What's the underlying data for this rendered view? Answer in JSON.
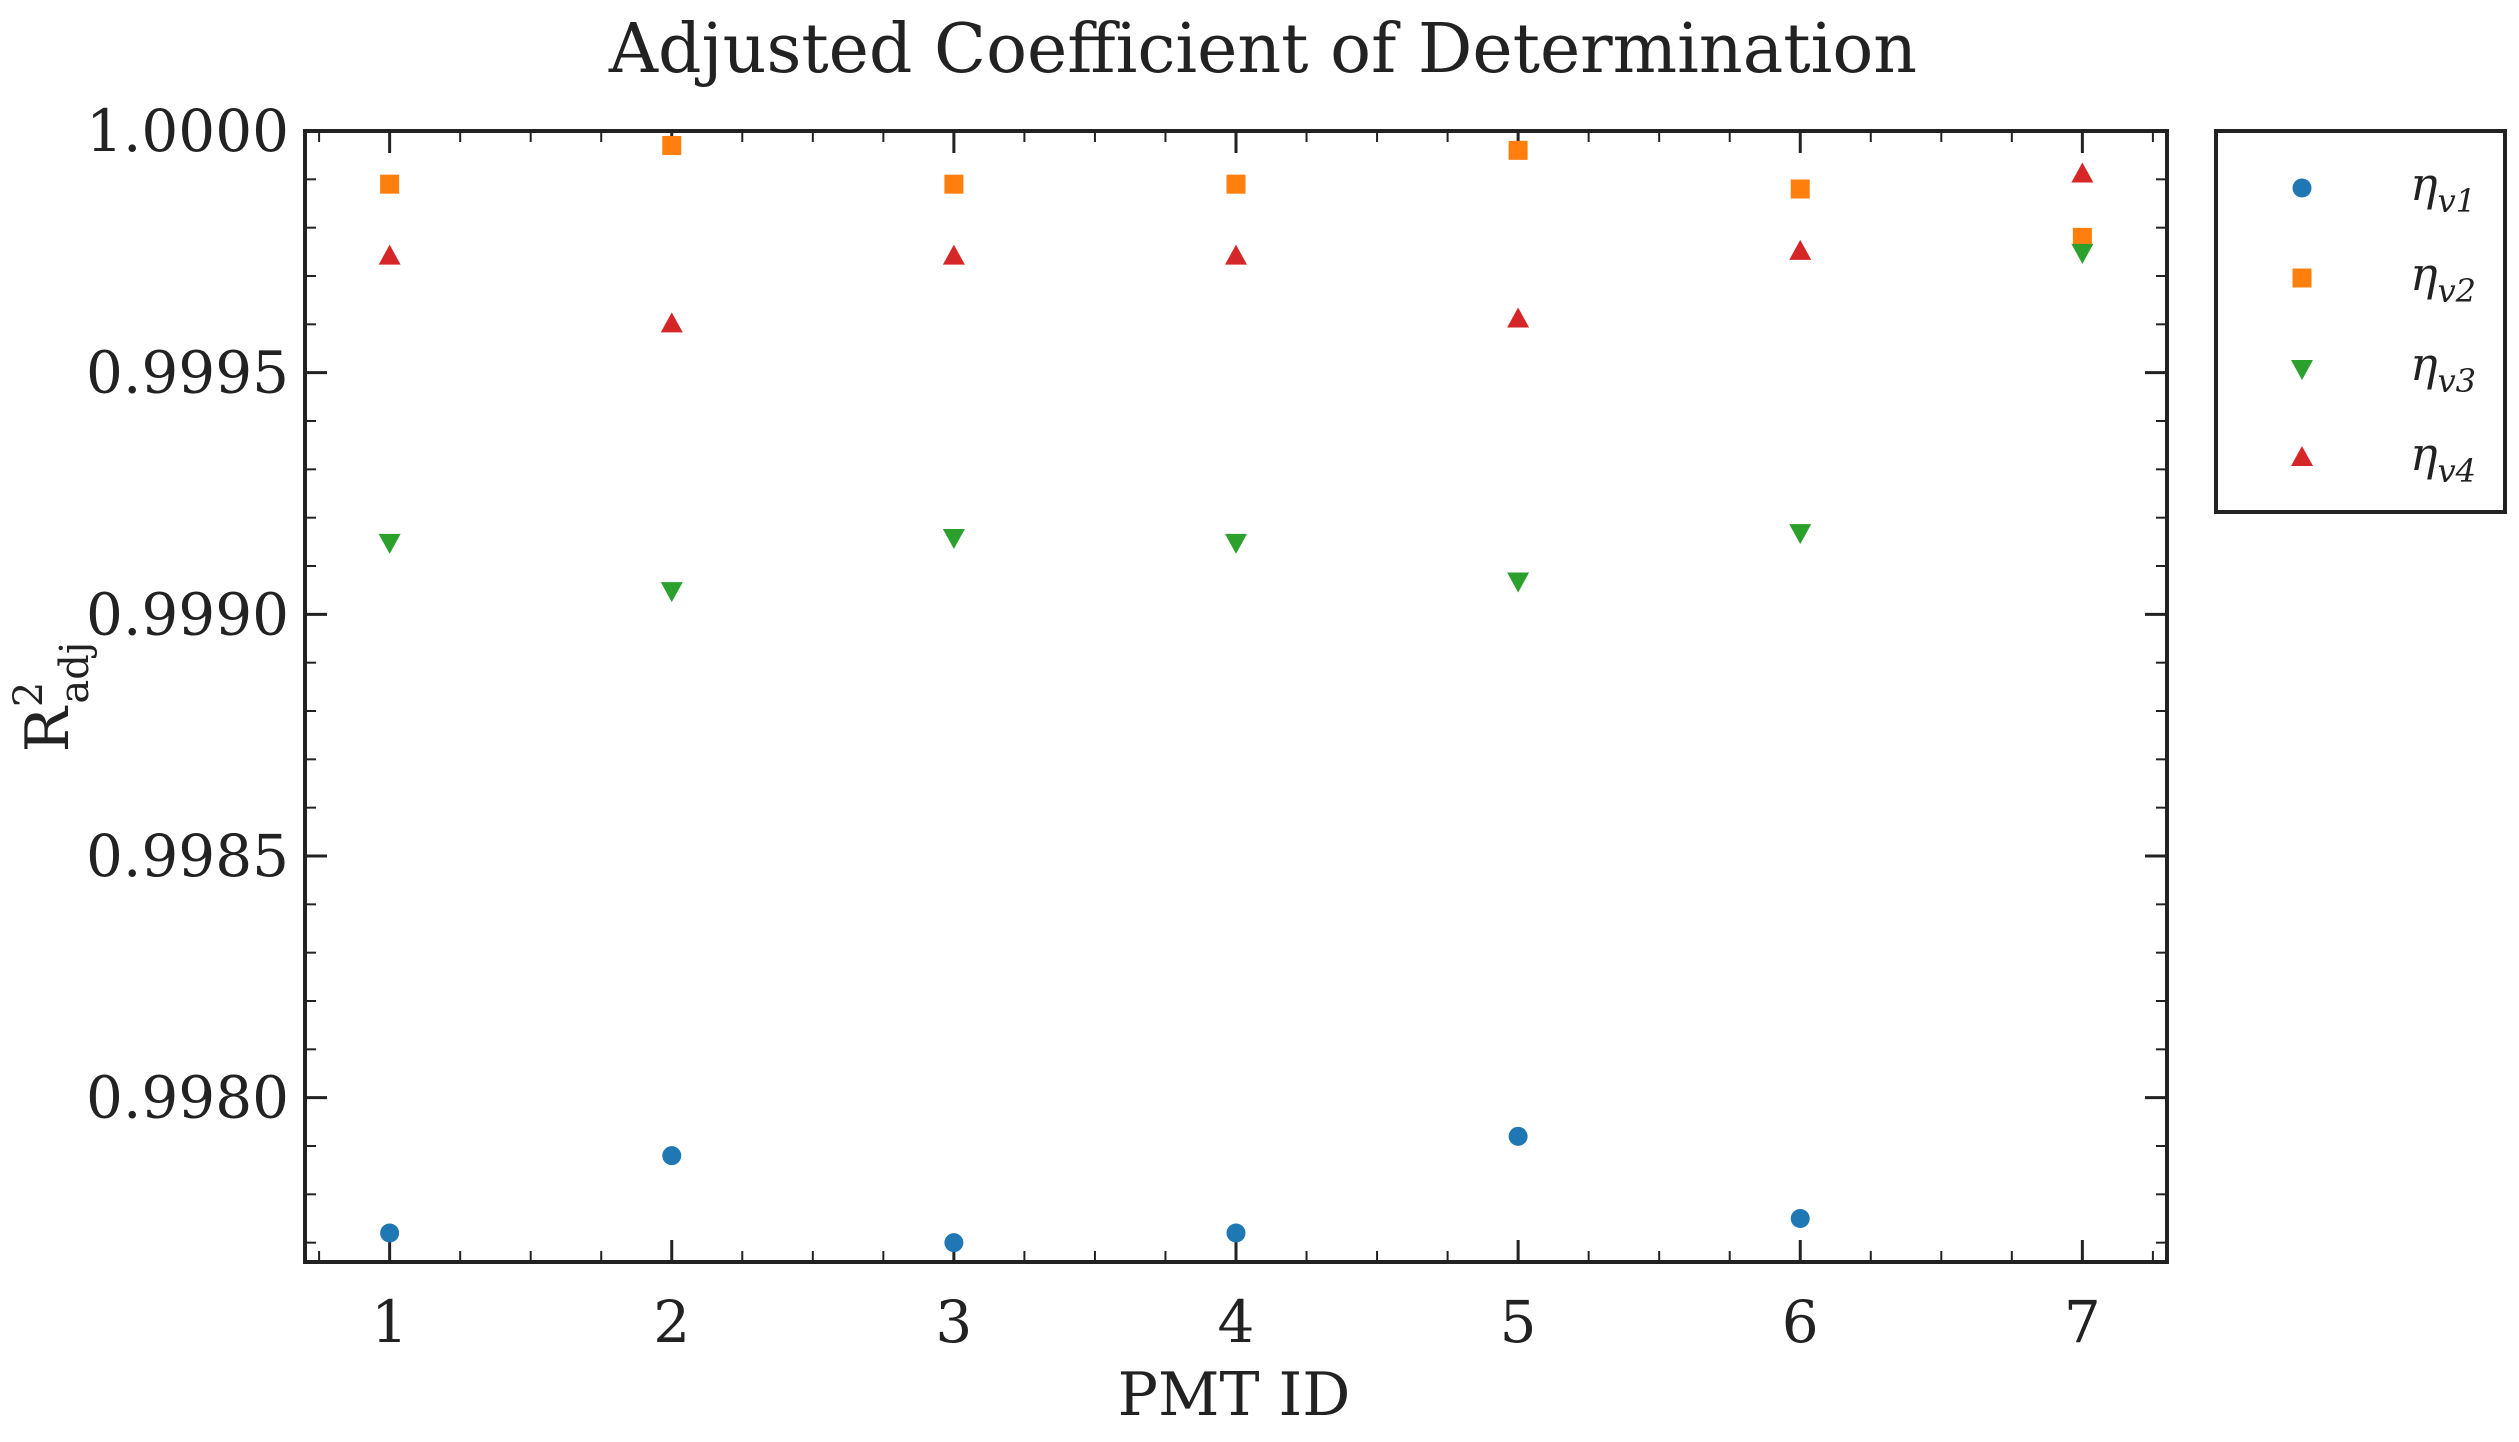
{
  "chart_data": {
    "type": "scatter",
    "title": "Adjusted Coefficient of Determination",
    "xlabel": "PMT ID",
    "ylabel": {
      "base": "R",
      "sup": "2",
      "sub": "adj"
    },
    "x": [
      1,
      2,
      3,
      4,
      5,
      6,
      7
    ],
    "xlim": [
      0.7,
      7.3
    ],
    "ylim": [
      0.99766,
      1.0
    ],
    "xticks": [
      "1",
      "2",
      "3",
      "4",
      "5",
      "6",
      "7"
    ],
    "yticks": [
      {
        "value": 1.0,
        "label": "1.0000"
      },
      {
        "value": 0.9995,
        "label": "0.9995"
      },
      {
        "value": 0.999,
        "label": "0.9990"
      },
      {
        "value": 0.9985,
        "label": "0.9985"
      },
      {
        "value": 0.998,
        "label": "0.9980"
      }
    ],
    "grid": false,
    "legend_position": "outside-top-right",
    "series": [
      {
        "name": "η",
        "sub": "v1",
        "marker": "circle",
        "color": "#1f77b4",
        "values": [
          0.99772,
          0.99788,
          0.9977,
          0.99772,
          0.99792,
          0.99775,
          null
        ]
      },
      {
        "name": "η",
        "sub": "v2",
        "marker": "square",
        "color": "#ff7f0e",
        "values": [
          0.99989,
          0.99997,
          0.99989,
          0.99989,
          0.99996,
          0.99988,
          0.99978
        ]
      },
      {
        "name": "η",
        "sub": "v3",
        "marker": "triangle-down",
        "color": "#2ca02c",
        "values": [
          0.99915,
          0.99905,
          0.99916,
          0.99915,
          0.99907,
          0.99917,
          0.99975
        ]
      },
      {
        "name": "η",
        "sub": "v4",
        "marker": "triangle-up",
        "color": "#d62728",
        "values": [
          0.99974,
          0.9996,
          0.99974,
          0.99974,
          0.99961,
          0.99975,
          0.99991
        ]
      }
    ]
  }
}
